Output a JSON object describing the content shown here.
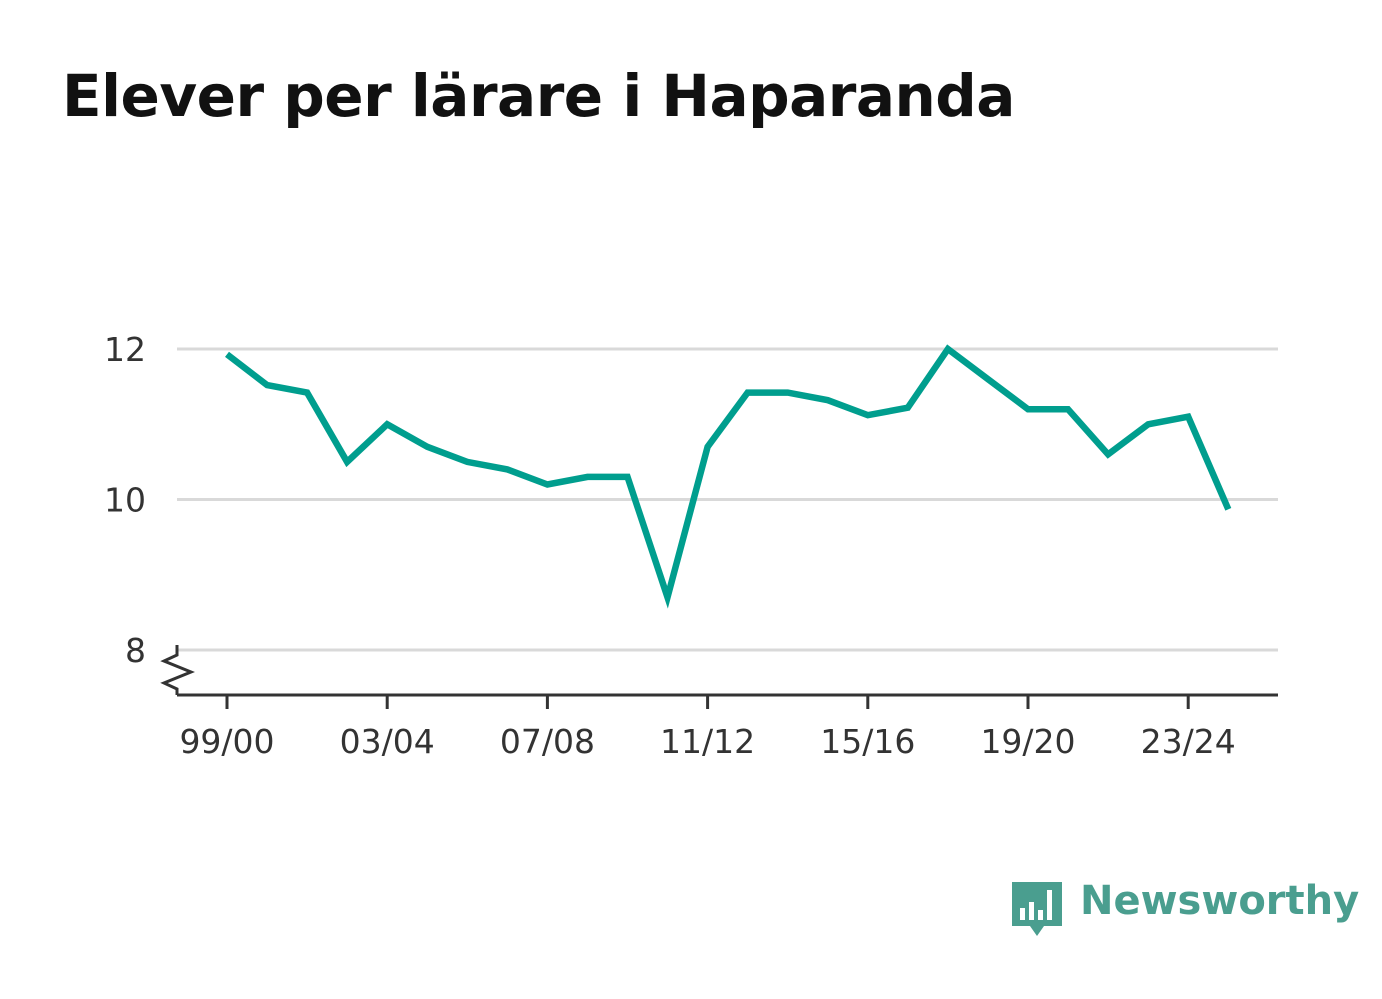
{
  "title": "Elever per lärare i Haparanda",
  "brand": {
    "name": "Newsworthy",
    "color": "#4a9e8f",
    "icon": "bar-chart-speech-bubble-icon"
  },
  "colors": {
    "line": "#009e8e",
    "grid": "#d9d9d9",
    "axis": "#333333"
  },
  "chart_data": {
    "type": "line",
    "title": "Elever per lärare i Haparanda",
    "xlabel": "",
    "ylabel": "",
    "ylim": [
      7.4,
      13.2
    ],
    "yticks": [
      8,
      10,
      12
    ],
    "y_axis_break": true,
    "grid": "horizontal",
    "legend": "none",
    "xtick_labels": [
      "99/00",
      "03/04",
      "07/08",
      "11/12",
      "15/16",
      "19/20",
      "23/24"
    ],
    "categories": [
      "99/00",
      "00/01",
      "01/02",
      "02/03",
      "03/04",
      "04/05",
      "05/06",
      "06/07",
      "07/08",
      "08/09",
      "09/10",
      "10/11",
      "11/12",
      "12/13",
      "13/14",
      "14/15",
      "15/16",
      "16/17",
      "17/18",
      "18/19",
      "19/20",
      "20/21",
      "21/22",
      "22/23",
      "23/24",
      "24/25"
    ],
    "series": [
      {
        "values": [
          11.93,
          11.52,
          11.42,
          10.5,
          11.0,
          10.7,
          10.5,
          10.4,
          10.2,
          10.3,
          10.3,
          8.7,
          10.7,
          11.42,
          11.42,
          11.32,
          11.12,
          11.22,
          12.0,
          11.6,
          11.2,
          11.2,
          10.6,
          11.0,
          11.1,
          9.87
        ]
      }
    ]
  }
}
